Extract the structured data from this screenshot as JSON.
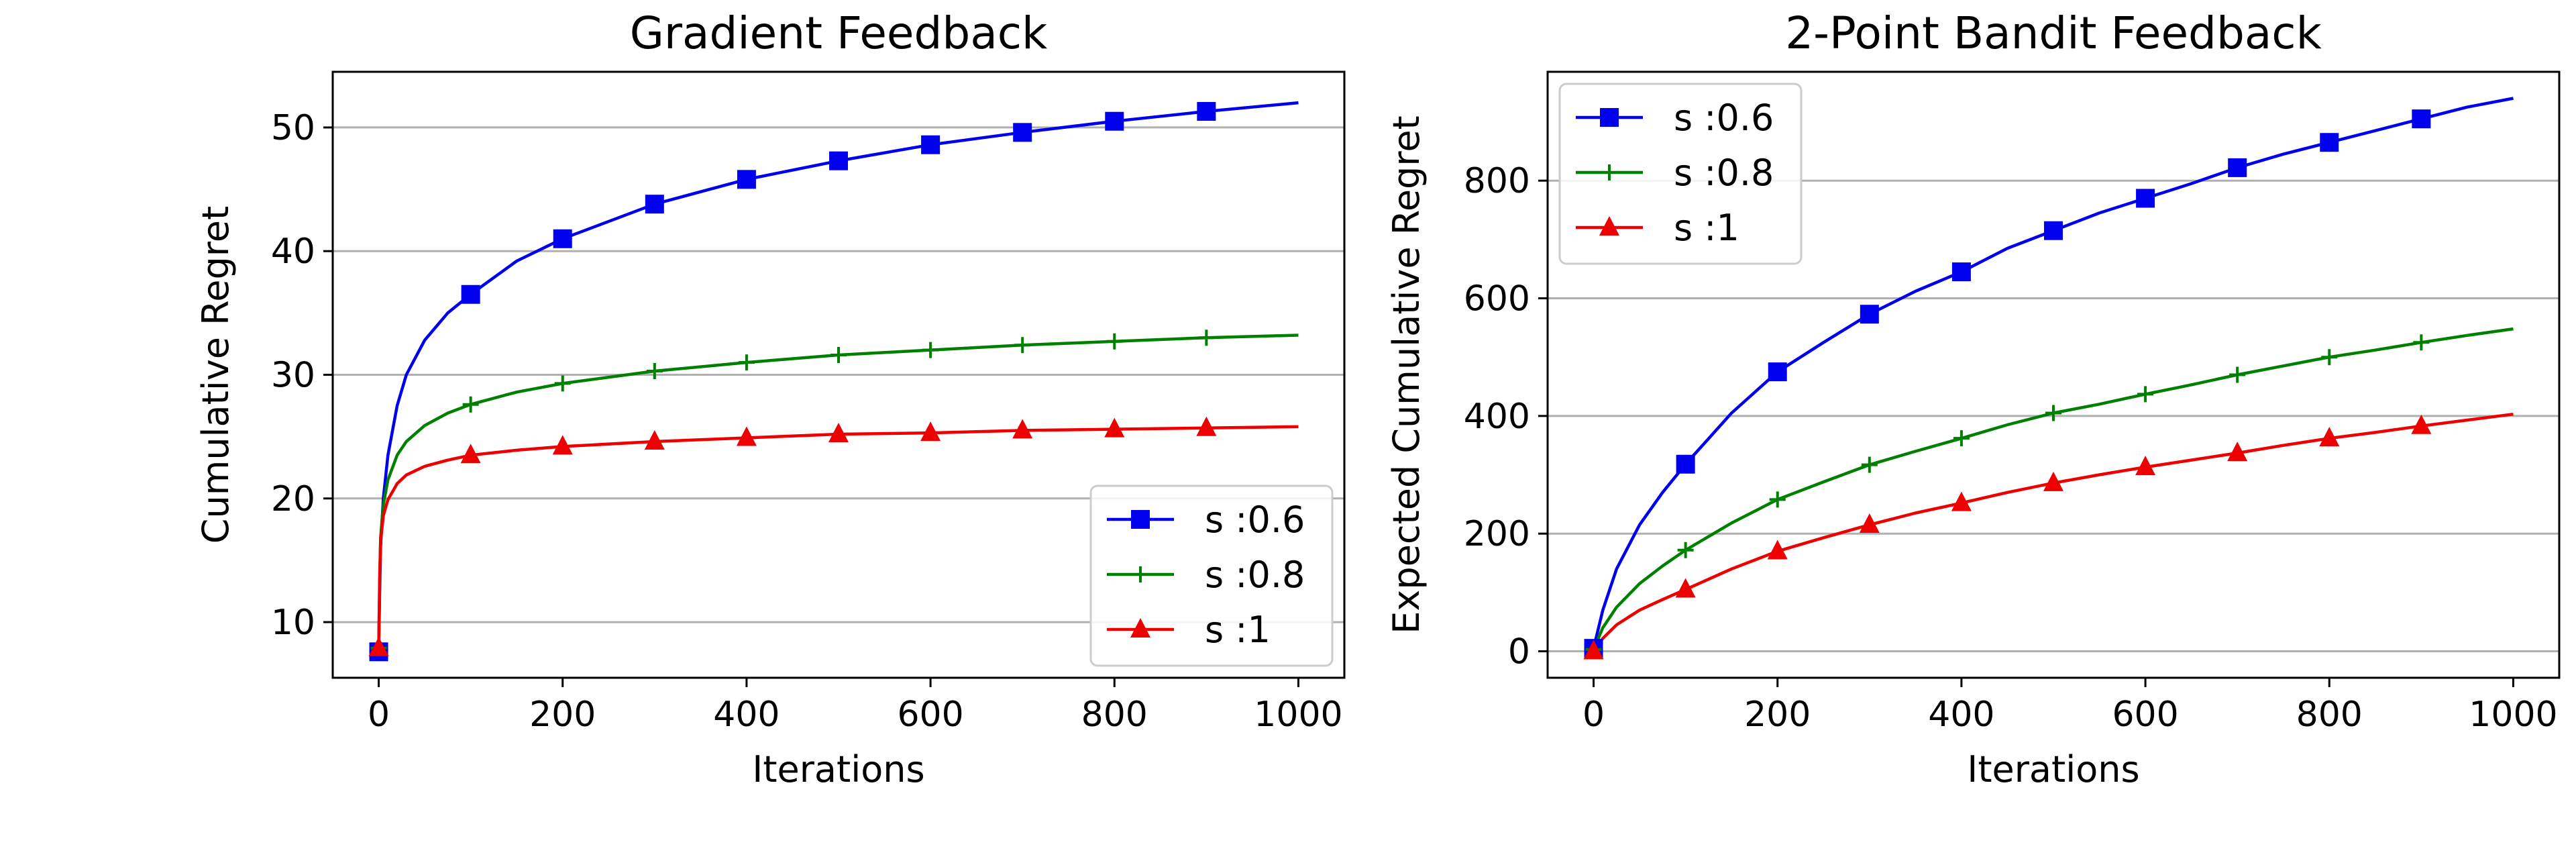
{
  "chart_data": [
    {
      "type": "line",
      "title": "Gradient Feedback",
      "xlabel": "Iterations",
      "ylabel": "Cumulative Regret",
      "xlim": [
        -50,
        1050
      ],
      "ylim": [
        5.5,
        54.5
      ],
      "xticks": [
        0,
        200,
        400,
        600,
        800,
        1000
      ],
      "yticks": [
        10,
        20,
        30,
        40,
        50
      ],
      "grid": "y",
      "legend_position": "lower-right",
      "series": [
        {
          "name": "s :0.6",
          "color": "#0000ee",
          "marker": "square",
          "x": [
            0,
            1,
            2,
            5,
            10,
            20,
            30,
            50,
            75,
            100,
            150,
            200,
            300,
            400,
            500,
            600,
            700,
            800,
            900,
            1000
          ],
          "y": [
            7.6,
            12.0,
            16.0,
            20.0,
            23.5,
            27.5,
            30.0,
            32.8,
            35.0,
            36.5,
            39.2,
            41.0,
            43.8,
            45.8,
            47.3,
            48.6,
            49.6,
            50.5,
            51.3,
            52.0
          ],
          "marker_x": [
            0,
            100,
            200,
            300,
            400,
            500,
            600,
            700,
            800,
            900
          ]
        },
        {
          "name": "s :0.8",
          "color": "#008000",
          "marker": "plus",
          "x": [
            0,
            1,
            2,
            5,
            10,
            20,
            30,
            50,
            75,
            100,
            150,
            200,
            300,
            400,
            500,
            600,
            700,
            800,
            900,
            1000
          ],
          "y": [
            7.9,
            13.0,
            16.8,
            19.5,
            21.5,
            23.5,
            24.6,
            25.9,
            26.9,
            27.6,
            28.6,
            29.3,
            30.3,
            31.0,
            31.6,
            32.0,
            32.4,
            32.7,
            33.0,
            33.2
          ],
          "marker_x": [
            0,
            100,
            200,
            300,
            400,
            500,
            600,
            700,
            800,
            900
          ]
        },
        {
          "name": "s :1",
          "color": "#ee0000",
          "marker": "triangle",
          "x": [
            0,
            1,
            2,
            5,
            10,
            20,
            30,
            50,
            75,
            100,
            150,
            200,
            300,
            400,
            500,
            600,
            700,
            800,
            900,
            1000
          ],
          "y": [
            7.9,
            13.5,
            16.5,
            18.6,
            19.9,
            21.2,
            21.9,
            22.6,
            23.1,
            23.5,
            23.9,
            24.2,
            24.6,
            24.9,
            25.2,
            25.3,
            25.5,
            25.6,
            25.7,
            25.8
          ],
          "marker_x": [
            0,
            100,
            200,
            300,
            400,
            500,
            600,
            700,
            800,
            900
          ]
        }
      ]
    },
    {
      "type": "line",
      "title": "2-Point Bandit Feedback",
      "xlabel": "Iterations",
      "ylabel": "Expected Cumulative Regret",
      "xlim": [
        -50,
        1050
      ],
      "ylim": [
        -45,
        985
      ],
      "xticks": [
        0,
        200,
        400,
        600,
        800,
        1000
      ],
      "yticks": [
        0,
        200,
        400,
        600,
        800
      ],
      "grid": "y",
      "legend_position": "upper-left",
      "series": [
        {
          "name": "s :0.6",
          "color": "#0000ee",
          "marker": "square",
          "x": [
            0,
            10,
            25,
            50,
            75,
            100,
            150,
            200,
            250,
            300,
            350,
            400,
            450,
            500,
            550,
            600,
            650,
            700,
            750,
            800,
            850,
            900,
            950,
            1000
          ],
          "y": [
            5,
            70,
            140,
            215,
            270,
            318,
            405,
            475,
            525,
            573,
            612,
            645,
            685,
            715,
            745,
            770,
            795,
            822,
            845,
            865,
            885,
            905,
            925,
            940
          ],
          "marker_x": [
            0,
            100,
            200,
            300,
            400,
            500,
            600,
            700,
            800,
            900
          ]
        },
        {
          "name": "s :0.8",
          "color": "#008000",
          "marker": "plus",
          "x": [
            0,
            10,
            25,
            50,
            75,
            100,
            150,
            200,
            250,
            300,
            350,
            400,
            450,
            500,
            550,
            600,
            650,
            700,
            750,
            800,
            850,
            900,
            950,
            1000
          ],
          "y": [
            3,
            40,
            75,
            115,
            145,
            172,
            218,
            258,
            288,
            317,
            340,
            362,
            385,
            405,
            420,
            437,
            453,
            470,
            485,
            500,
            512,
            525,
            537,
            548
          ],
          "marker_x": [
            0,
            100,
            200,
            300,
            400,
            500,
            600,
            700,
            800,
            900
          ]
        },
        {
          "name": "s :1",
          "color": "#ee0000",
          "marker": "triangle",
          "x": [
            0,
            10,
            25,
            50,
            75,
            100,
            150,
            200,
            250,
            300,
            350,
            400,
            450,
            500,
            550,
            600,
            650,
            700,
            750,
            800,
            850,
            900,
            950,
            1000
          ],
          "y": [
            0,
            22,
            45,
            70,
            88,
            105,
            140,
            170,
            193,
            215,
            235,
            252,
            270,
            286,
            300,
            313,
            325,
            337,
            350,
            362,
            372,
            383,
            393,
            403
          ],
          "marker_x": [
            0,
            100,
            200,
            300,
            400,
            500,
            600,
            700,
            800,
            900
          ]
        }
      ]
    }
  ]
}
